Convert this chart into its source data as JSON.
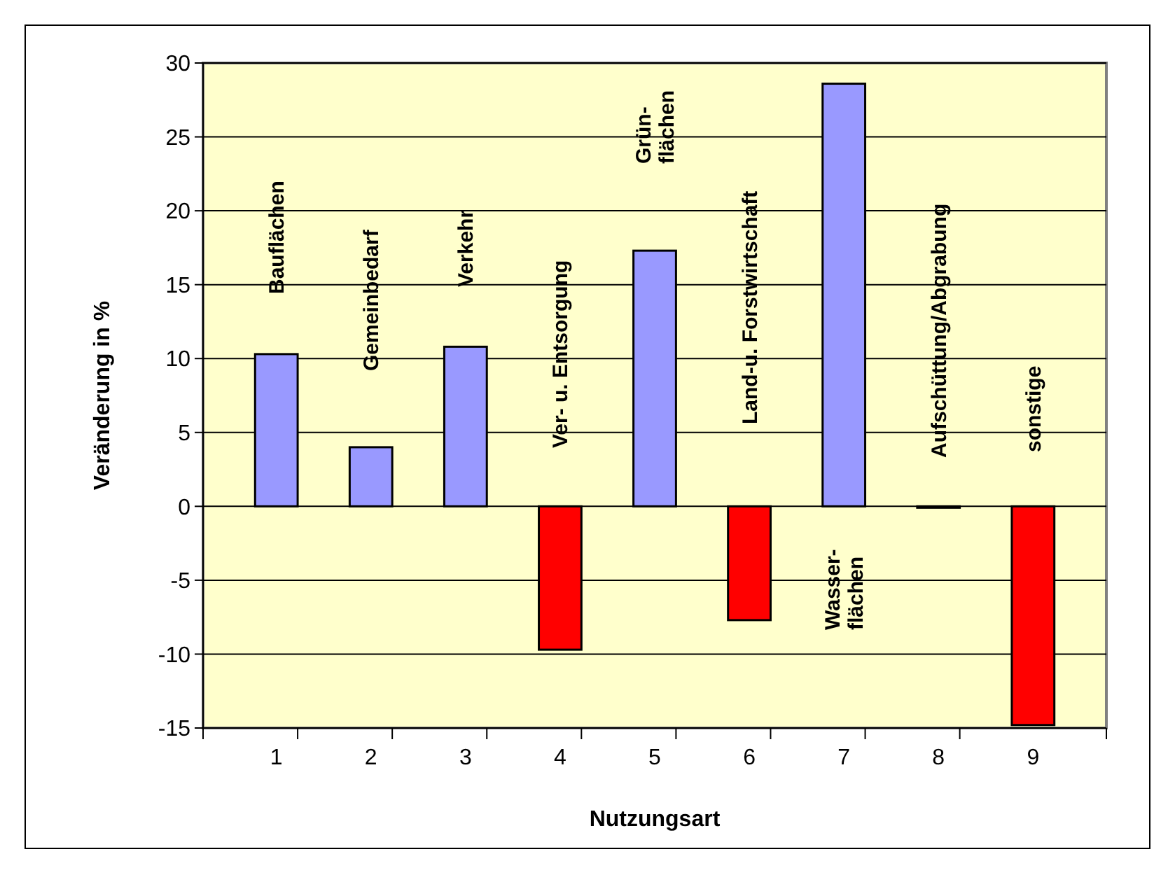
{
  "chart_data": {
    "type": "bar",
    "xlabel": "Nutzungsart",
    "ylabel": "Veränderung in %",
    "categories": [
      "1",
      "2",
      "3",
      "4",
      "5",
      "6",
      "7",
      "8",
      "9"
    ],
    "values": [
      10.3,
      4.0,
      10.8,
      -9.7,
      17.3,
      -7.7,
      28.6,
      0,
      -14.8
    ],
    "colors": [
      "#9999ff",
      "#9999ff",
      "#9999ff",
      "#ff0000",
      "#9999ff",
      "#ff0000",
      "#9999ff",
      "#9999ff",
      "#ff0000"
    ],
    "ylim": [
      -15,
      30
    ],
    "yticks": [
      -15,
      -10,
      -5,
      0,
      5,
      10,
      15,
      20,
      25,
      30
    ],
    "grid": "y",
    "annotations": [
      "Bauflächen",
      "Gemeinbedarf",
      "Verkehr",
      "Ver- u. Entsorgung",
      "Grün-\nflächen",
      "Land-u. Forstwirtschaft",
      "Wasser-\nflächen",
      "Aufschüttung/Abgrabung",
      "sonstige"
    ]
  }
}
